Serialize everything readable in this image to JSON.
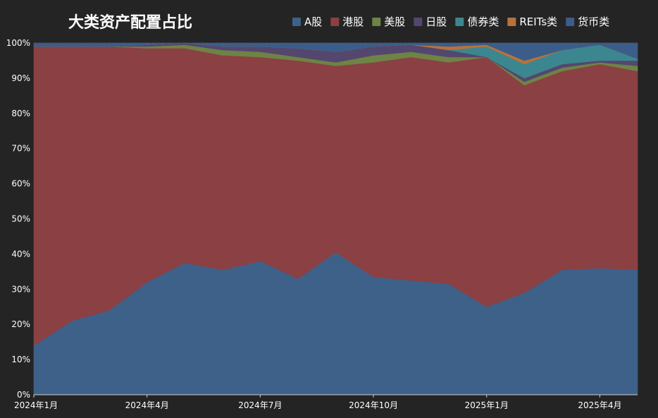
{
  "chart_data": {
    "type": "area",
    "stacked": true,
    "normalized": true,
    "title": "大类资产配置占比",
    "xlabel": "",
    "ylabel": "",
    "ylim": [
      0,
      100
    ],
    "y_ticks": [
      "0%",
      "10%",
      "20%",
      "30%",
      "40%",
      "50%",
      "60%",
      "70%",
      "80%",
      "90%",
      "100%"
    ],
    "x_ticks": [
      {
        "index": 0,
        "label": "2024年1月"
      },
      {
        "index": 3,
        "label": "2024年4月"
      },
      {
        "index": 6,
        "label": "2024年7月"
      },
      {
        "index": 9,
        "label": "2024年10月"
      },
      {
        "index": 12,
        "label": "2025年1月"
      },
      {
        "index": 15,
        "label": "2025年4月"
      }
    ],
    "x": [
      "2024-01",
      "2024-02",
      "2024-03",
      "2024-04",
      "2024-05",
      "2024-06",
      "2024-07",
      "2024-08",
      "2024-09",
      "2024-10",
      "2024-11",
      "2024-12",
      "2025-01",
      "2025-02",
      "2025-03",
      "2025-04",
      "2025-05"
    ],
    "grid": true,
    "legend_position": "top",
    "series": [
      {
        "name": "A股",
        "color": "#3e6189",
        "values": [
          14,
          21,
          24,
          32,
          37.5,
          35.5,
          38,
          33,
          40.5,
          33.5,
          32.5,
          31.5,
          25,
          29,
          35.5,
          36,
          35.5
        ]
      },
      {
        "name": "港股",
        "color": "#8b4043",
        "values": [
          85,
          78,
          75,
          66.5,
          61,
          61,
          58,
          62,
          53,
          61,
          63.5,
          63,
          71,
          59,
          56.5,
          58,
          56.5
        ]
      },
      {
        "name": "美股",
        "color": "#6e8345",
        "values": [
          0,
          0,
          0,
          0.5,
          1,
          1.5,
          1.5,
          1,
          1,
          2,
          1.5,
          1.5,
          0,
          1,
          1,
          0.5,
          1.5
        ]
      },
      {
        "name": "日股",
        "color": "#54476e",
        "values": [
          0,
          0,
          0,
          0.5,
          0.5,
          1,
          1.5,
          2.5,
          3,
          2.5,
          2,
          2,
          0,
          1,
          1,
          0.5,
          1.5
        ]
      },
      {
        "name": "债券类",
        "color": "#3c8690",
        "values": [
          0,
          0,
          0,
          0,
          0,
          0,
          0,
          0,
          0,
          0,
          0,
          0,
          3,
          4,
          4,
          4.5,
          0.5
        ]
      },
      {
        "name": "REITs类",
        "color": "#b8723a",
        "values": [
          0,
          0,
          0,
          0,
          0,
          0,
          0,
          0,
          0,
          0,
          0,
          1,
          0.5,
          1,
          0,
          0,
          0
        ]
      },
      {
        "name": "货币类",
        "color": "#3c5d89",
        "values": [
          1,
          1,
          1,
          0.5,
          0,
          1,
          1,
          1.5,
          2.5,
          1,
          0.5,
          1,
          0.5,
          5,
          2,
          0.5,
          4.5
        ]
      }
    ]
  }
}
